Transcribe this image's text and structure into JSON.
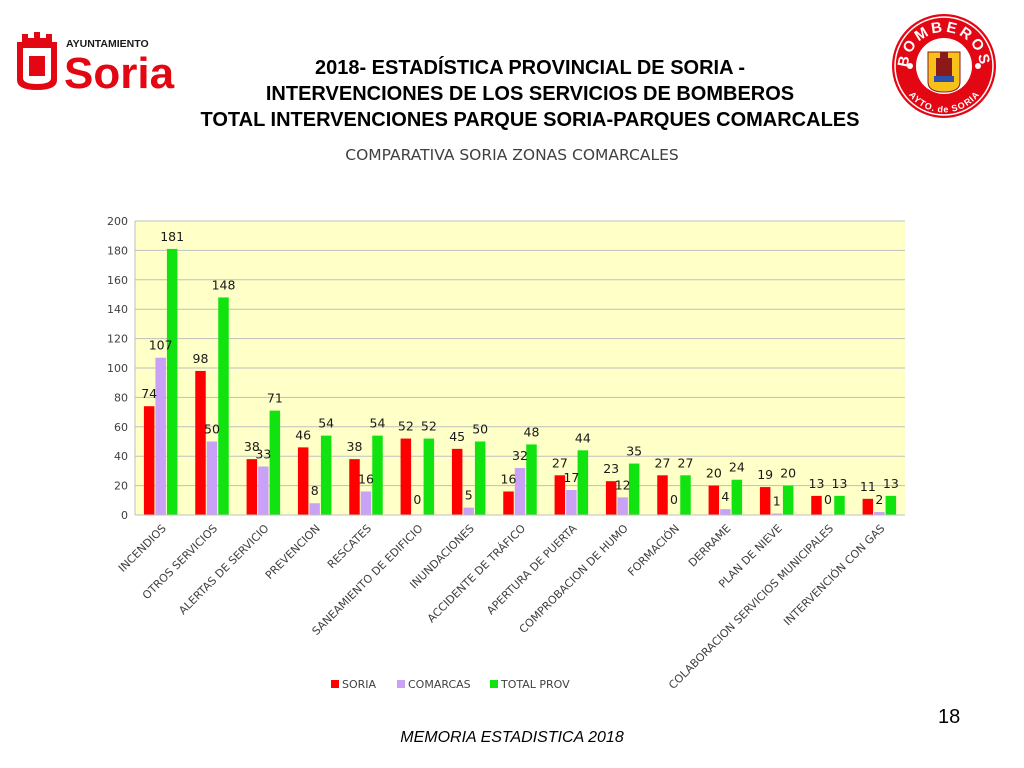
{
  "logo_left": {
    "small_text": "AYUNTAMIENTO",
    "big_text": "Soria"
  },
  "logo_right": {
    "top_text": "BOMBEROS",
    "bottom_text": "AYTO. de SORIA"
  },
  "header": {
    "line1": "2018- ESTADÍSTICA PROVINCIAL DE SORIA -",
    "line2": "INTERVENCIONES DE LOS SERVICIOS DE BOMBEROS",
    "line3": "TOTAL INTERVENCIONES PARQUE SORIA-PARQUES COMARCALES"
  },
  "chart_data": {
    "type": "bar",
    "title": "COMPARATIVA SORIA ZONAS COMARCALES",
    "categories": [
      "INCENDIOS",
      "OTROS SERVICIOS",
      "ALERTAS DE SERVICIO",
      "PREVENCION",
      "RESCATES",
      "SANEAMIENTO DE EDIFICIO",
      "INUNDACIONES",
      "ACCIDENTE DE TRÁFICO",
      "APERTURA DE PUERTA",
      "COMPROBACION DE HUMO",
      "FORMACIÓN",
      "DERRAME",
      "PLAN DE NIEVE",
      "COLABORACION SERVICIOS MUNICIPALES",
      "INTERVENCIÓN CON GAS"
    ],
    "series": [
      {
        "name": "SORIA",
        "color": "#ff0000",
        "values": [
          74,
          98,
          38,
          46,
          38,
          52,
          45,
          16,
          27,
          23,
          27,
          20,
          19,
          13,
          11
        ]
      },
      {
        "name": "COMARCAS",
        "color": "#c9a2f7",
        "values": [
          107,
          50,
          33,
          8,
          16,
          0,
          5,
          32,
          17,
          12,
          0,
          4,
          1,
          0,
          2
        ]
      },
      {
        "name": "TOTAL PROV",
        "color": "#11e311",
        "values": [
          181,
          148,
          71,
          54,
          54,
          52,
          50,
          48,
          44,
          35,
          27,
          24,
          20,
          13,
          13
        ]
      }
    ],
    "ylim": [
      0,
      200
    ],
    "yticks": [
      0,
      20,
      40,
      60,
      80,
      100,
      120,
      140,
      160,
      180,
      200
    ],
    "grid": true,
    "legend_position": "bottom",
    "plot_background": "#ffffc8"
  },
  "page_number": "18",
  "footer": "MEMORIA ESTADISTICA 2018"
}
